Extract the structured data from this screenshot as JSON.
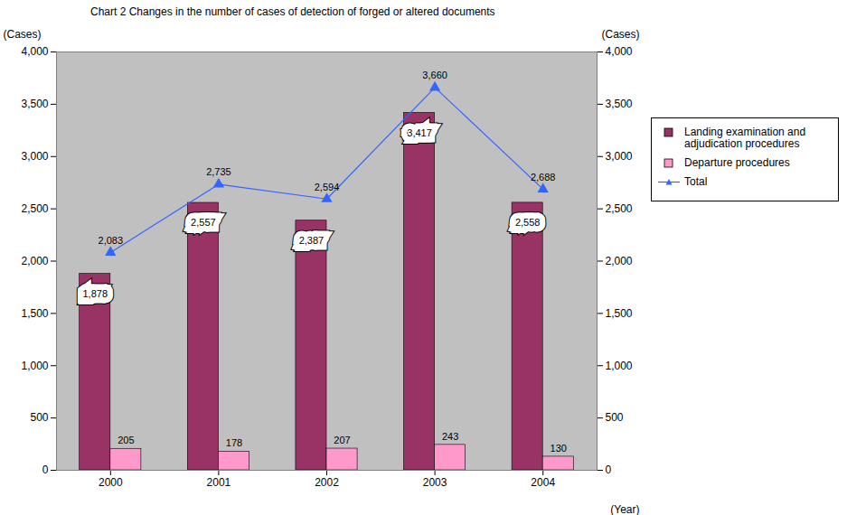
{
  "chart_data": {
    "type": "bar",
    "title": "Chart 2 Changes in the number of cases of detection of forged or altered documents",
    "categories": [
      "2000",
      "2001",
      "2002",
      "2003",
      "2004"
    ],
    "xlabel": "(Year)",
    "ylabel": "(Cases)",
    "y2label": "(Cases)",
    "ylim": [
      0,
      4000
    ],
    "yticks": [
      0,
      500,
      {
        "value": 1000,
        "label": "1,000"
      },
      {
        "value": 1500,
        "label": "1,500"
      },
      {
        "value": 2000,
        "label": "2,000"
      },
      {
        "value": 2500,
        "label": "2,500"
      },
      {
        "value": 3000,
        "label": "3,000"
      },
      {
        "value": 3500,
        "label": "3,500"
      },
      {
        "value": 4000,
        "label": "4,000"
      }
    ],
    "y2lim": [
      0,
      4000
    ],
    "y2ticks": [
      0,
      500,
      {
        "value": 1000,
        "label": "1,000"
      },
      {
        "value": 1500,
        "label": "1,500"
      },
      {
        "value": 2000,
        "label": "2,000"
      },
      {
        "value": 2500,
        "label": "2,500"
      },
      {
        "value": 3000,
        "label": "3,000"
      },
      {
        "value": 3500,
        "label": "3,500"
      },
      {
        "value": 4000,
        "label": "4,000"
      }
    ],
    "series": [
      {
        "name": "Landing examination and adjudication procedures",
        "type": "bar",
        "color": "#993366",
        "values": [
          1878,
          2557,
          2387,
          3417,
          2558
        ],
        "value_labels": [
          "1,878",
          "2,557",
          "2,387",
          "3,417",
          "2,558"
        ]
      },
      {
        "name": "Departure procedures",
        "type": "bar",
        "color": "#FF99CC",
        "values": [
          205,
          178,
          207,
          243,
          130
        ]
      },
      {
        "name": "Total",
        "type": "line",
        "axis": "y2",
        "color": "#3366FF",
        "marker": "triangle",
        "line_style": "solid",
        "values": [
          2083,
          2735,
          2594,
          3660,
          2688
        ],
        "value_labels": [
          "2,083",
          "2,735",
          "2,594",
          "3,660",
          "2,688"
        ]
      }
    ],
    "data_labels": true,
    "legend": "right",
    "grid": false
  }
}
